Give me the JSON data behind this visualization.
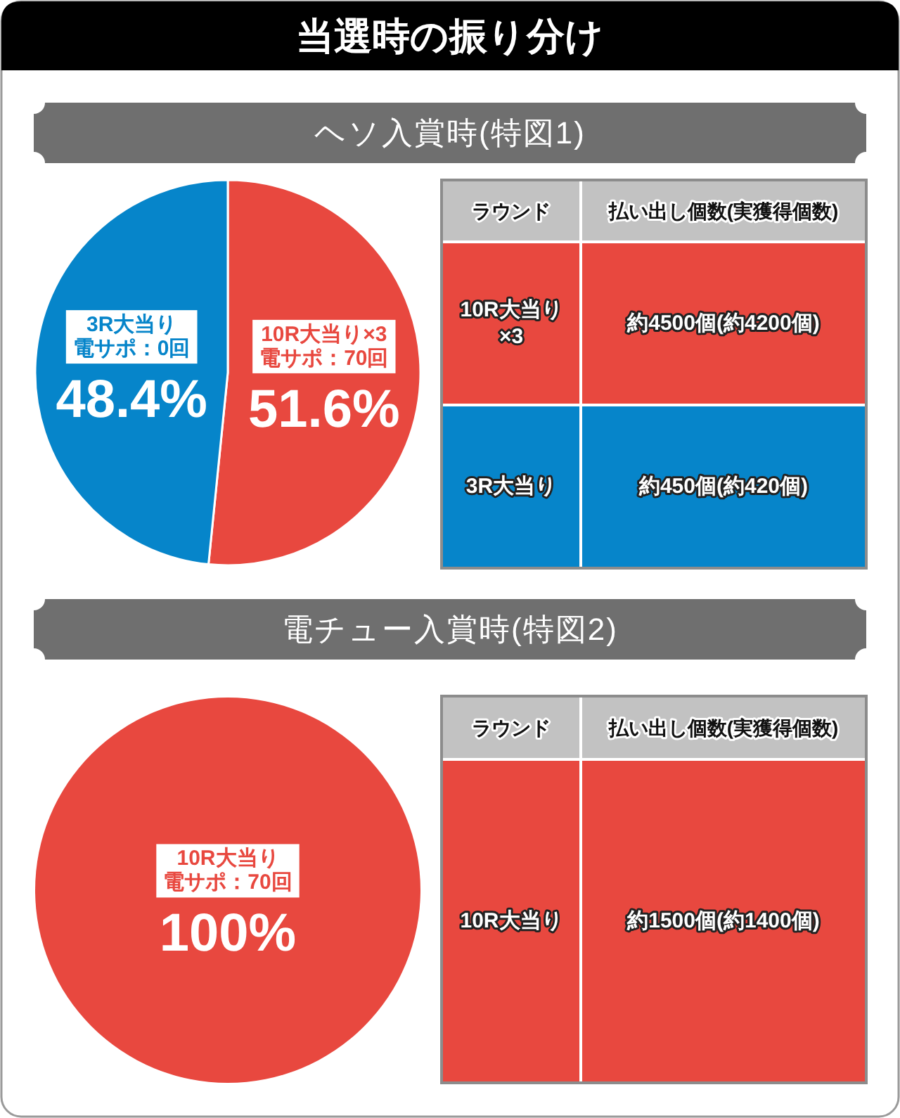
{
  "chart_data": [
    {
      "type": "pie",
      "title": "当選時の振り分け",
      "subtitle": "ヘソ入賞時(特図1)",
      "categories": [
        "10R大当り×3",
        "3R大当り"
      ],
      "values": [
        51.6,
        48.4
      ],
      "colors": [
        "#e8483f",
        "#0685ca"
      ],
      "value_labels": [
        "51.6%",
        "48.4%"
      ],
      "annotations": [
        "電サポ：70回",
        "電サポ：0回"
      ]
    },
    {
      "type": "other",
      "annotations": [
        "ラウンド",
        "払い出し個数(実獲得個数)",
        "10R大当り\n×3",
        "約4500個(約4200個)",
        "3R大当り",
        "約450個(約420個)"
      ],
      "colors": [
        "#e8483f",
        "#0685ca"
      ]
    },
    {
      "type": "pie",
      "subtitle": "電チュー入賞時(特図2)",
      "categories": [
        "10R大当り"
      ],
      "values": [
        100
      ],
      "colors": [
        "#e8483f"
      ],
      "value_labels": [
        "100%"
      ],
      "annotations": [
        "電サポ：70回"
      ]
    },
    {
      "type": "other",
      "annotations": [
        "ラウンド",
        "払い出し個数(実獲得個数)",
        "10R大当り",
        "約1500個(約1400個)"
      ],
      "colors": [
        "#e8483f"
      ]
    }
  ]
}
